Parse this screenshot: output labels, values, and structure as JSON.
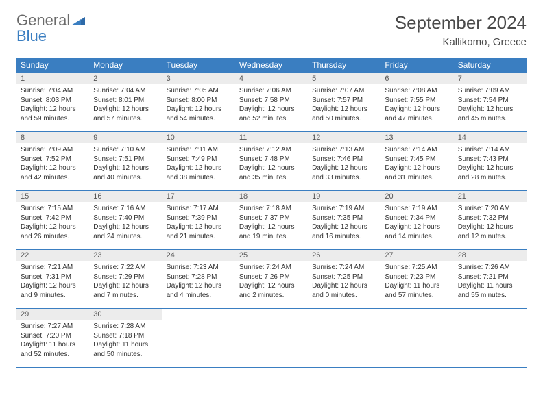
{
  "brand": {
    "line1": "General",
    "line2": "Blue"
  },
  "colors": {
    "header_bg": "#3a7ec1",
    "header_text": "#ffffff",
    "daynum_bg": "#ececec",
    "border": "#3a7ec1",
    "text": "#333333",
    "title": "#4a4a4a",
    "logo_gray": "#6b6b6b",
    "logo_blue": "#3a7ec1"
  },
  "title": "September 2024",
  "location": "Kallikomo, Greece",
  "weekdays": [
    "Sunday",
    "Monday",
    "Tuesday",
    "Wednesday",
    "Thursday",
    "Friday",
    "Saturday"
  ],
  "days": [
    {
      "n": "1",
      "sunrise": "Sunrise: 7:04 AM",
      "sunset": "Sunset: 8:03 PM",
      "day1": "Daylight: 12 hours",
      "day2": "and 59 minutes."
    },
    {
      "n": "2",
      "sunrise": "Sunrise: 7:04 AM",
      "sunset": "Sunset: 8:01 PM",
      "day1": "Daylight: 12 hours",
      "day2": "and 57 minutes."
    },
    {
      "n": "3",
      "sunrise": "Sunrise: 7:05 AM",
      "sunset": "Sunset: 8:00 PM",
      "day1": "Daylight: 12 hours",
      "day2": "and 54 minutes."
    },
    {
      "n": "4",
      "sunrise": "Sunrise: 7:06 AM",
      "sunset": "Sunset: 7:58 PM",
      "day1": "Daylight: 12 hours",
      "day2": "and 52 minutes."
    },
    {
      "n": "5",
      "sunrise": "Sunrise: 7:07 AM",
      "sunset": "Sunset: 7:57 PM",
      "day1": "Daylight: 12 hours",
      "day2": "and 50 minutes."
    },
    {
      "n": "6",
      "sunrise": "Sunrise: 7:08 AM",
      "sunset": "Sunset: 7:55 PM",
      "day1": "Daylight: 12 hours",
      "day2": "and 47 minutes."
    },
    {
      "n": "7",
      "sunrise": "Sunrise: 7:09 AM",
      "sunset": "Sunset: 7:54 PM",
      "day1": "Daylight: 12 hours",
      "day2": "and 45 minutes."
    },
    {
      "n": "8",
      "sunrise": "Sunrise: 7:09 AM",
      "sunset": "Sunset: 7:52 PM",
      "day1": "Daylight: 12 hours",
      "day2": "and 42 minutes."
    },
    {
      "n": "9",
      "sunrise": "Sunrise: 7:10 AM",
      "sunset": "Sunset: 7:51 PM",
      "day1": "Daylight: 12 hours",
      "day2": "and 40 minutes."
    },
    {
      "n": "10",
      "sunrise": "Sunrise: 7:11 AM",
      "sunset": "Sunset: 7:49 PM",
      "day1": "Daylight: 12 hours",
      "day2": "and 38 minutes."
    },
    {
      "n": "11",
      "sunrise": "Sunrise: 7:12 AM",
      "sunset": "Sunset: 7:48 PM",
      "day1": "Daylight: 12 hours",
      "day2": "and 35 minutes."
    },
    {
      "n": "12",
      "sunrise": "Sunrise: 7:13 AM",
      "sunset": "Sunset: 7:46 PM",
      "day1": "Daylight: 12 hours",
      "day2": "and 33 minutes."
    },
    {
      "n": "13",
      "sunrise": "Sunrise: 7:14 AM",
      "sunset": "Sunset: 7:45 PM",
      "day1": "Daylight: 12 hours",
      "day2": "and 31 minutes."
    },
    {
      "n": "14",
      "sunrise": "Sunrise: 7:14 AM",
      "sunset": "Sunset: 7:43 PM",
      "day1": "Daylight: 12 hours",
      "day2": "and 28 minutes."
    },
    {
      "n": "15",
      "sunrise": "Sunrise: 7:15 AM",
      "sunset": "Sunset: 7:42 PM",
      "day1": "Daylight: 12 hours",
      "day2": "and 26 minutes."
    },
    {
      "n": "16",
      "sunrise": "Sunrise: 7:16 AM",
      "sunset": "Sunset: 7:40 PM",
      "day1": "Daylight: 12 hours",
      "day2": "and 24 minutes."
    },
    {
      "n": "17",
      "sunrise": "Sunrise: 7:17 AM",
      "sunset": "Sunset: 7:39 PM",
      "day1": "Daylight: 12 hours",
      "day2": "and 21 minutes."
    },
    {
      "n": "18",
      "sunrise": "Sunrise: 7:18 AM",
      "sunset": "Sunset: 7:37 PM",
      "day1": "Daylight: 12 hours",
      "day2": "and 19 minutes."
    },
    {
      "n": "19",
      "sunrise": "Sunrise: 7:19 AM",
      "sunset": "Sunset: 7:35 PM",
      "day1": "Daylight: 12 hours",
      "day2": "and 16 minutes."
    },
    {
      "n": "20",
      "sunrise": "Sunrise: 7:19 AM",
      "sunset": "Sunset: 7:34 PM",
      "day1": "Daylight: 12 hours",
      "day2": "and 14 minutes."
    },
    {
      "n": "21",
      "sunrise": "Sunrise: 7:20 AM",
      "sunset": "Sunset: 7:32 PM",
      "day1": "Daylight: 12 hours",
      "day2": "and 12 minutes."
    },
    {
      "n": "22",
      "sunrise": "Sunrise: 7:21 AM",
      "sunset": "Sunset: 7:31 PM",
      "day1": "Daylight: 12 hours",
      "day2": "and 9 minutes."
    },
    {
      "n": "23",
      "sunrise": "Sunrise: 7:22 AM",
      "sunset": "Sunset: 7:29 PM",
      "day1": "Daylight: 12 hours",
      "day2": "and 7 minutes."
    },
    {
      "n": "24",
      "sunrise": "Sunrise: 7:23 AM",
      "sunset": "Sunset: 7:28 PM",
      "day1": "Daylight: 12 hours",
      "day2": "and 4 minutes."
    },
    {
      "n": "25",
      "sunrise": "Sunrise: 7:24 AM",
      "sunset": "Sunset: 7:26 PM",
      "day1": "Daylight: 12 hours",
      "day2": "and 2 minutes."
    },
    {
      "n": "26",
      "sunrise": "Sunrise: 7:24 AM",
      "sunset": "Sunset: 7:25 PM",
      "day1": "Daylight: 12 hours",
      "day2": "and 0 minutes."
    },
    {
      "n": "27",
      "sunrise": "Sunrise: 7:25 AM",
      "sunset": "Sunset: 7:23 PM",
      "day1": "Daylight: 11 hours",
      "day2": "and 57 minutes."
    },
    {
      "n": "28",
      "sunrise": "Sunrise: 7:26 AM",
      "sunset": "Sunset: 7:21 PM",
      "day1": "Daylight: 11 hours",
      "day2": "and 55 minutes."
    },
    {
      "n": "29",
      "sunrise": "Sunrise: 7:27 AM",
      "sunset": "Sunset: 7:20 PM",
      "day1": "Daylight: 11 hours",
      "day2": "and 52 minutes."
    },
    {
      "n": "30",
      "sunrise": "Sunrise: 7:28 AM",
      "sunset": "Sunset: 7:18 PM",
      "day1": "Daylight: 11 hours",
      "day2": "and 50 minutes."
    }
  ]
}
